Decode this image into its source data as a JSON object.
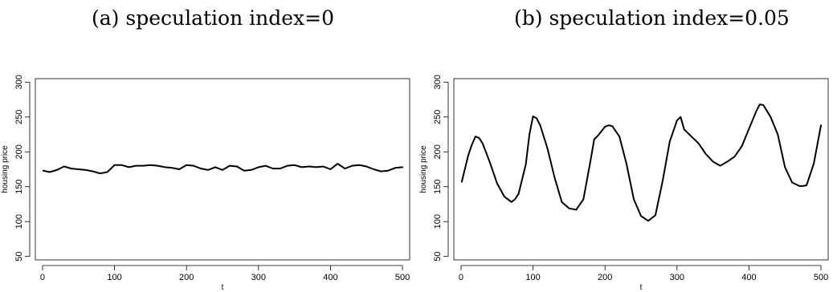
{
  "panels": {
    "a": {
      "title": "(a) speculation index=0"
    },
    "b": {
      "title": "(b) speculation index=0.05"
    }
  },
  "chart_data": [
    {
      "type": "line",
      "title": "(a) speculation index=0",
      "xlabel": "t",
      "ylabel": "housing price",
      "xlim": [
        -10,
        510
      ],
      "ylim": [
        45,
        305
      ],
      "xticks": [
        0,
        100,
        200,
        300,
        400,
        500
      ],
      "yticks": [
        50,
        100,
        150,
        200,
        250,
        300
      ],
      "grid": false,
      "series": [
        {
          "x": [
            1,
            10,
            20,
            30,
            40,
            50,
            60,
            70,
            80,
            90,
            100,
            110,
            120,
            130,
            140,
            150,
            160,
            170,
            180,
            190,
            200,
            210,
            220,
            230,
            240,
            250,
            260,
            270,
            280,
            290,
            300,
            310,
            320,
            330,
            340,
            350,
            360,
            370,
            380,
            390,
            400,
            410,
            420,
            430,
            440,
            450,
            460,
            470,
            480,
            490,
            500
          ],
          "values": [
            173,
            171,
            174,
            179,
            176,
            175,
            174,
            172,
            169,
            171,
            181,
            181,
            178,
            180,
            180,
            181,
            180,
            178,
            177,
            175,
            181,
            180,
            176,
            174,
            178,
            174,
            180,
            179,
            173,
            174,
            178,
            180,
            176,
            176,
            180,
            181,
            178,
            179,
            178,
            179,
            175,
            183,
            176,
            180,
            181,
            179,
            175,
            172,
            173,
            177,
            178
          ]
        }
      ]
    },
    {
      "type": "line",
      "title": "(b) speculation index=0.05",
      "xlabel": "t",
      "ylabel": "housing price",
      "xlim": [
        -10,
        510
      ],
      "ylim": [
        45,
        305
      ],
      "xticks": [
        0,
        100,
        200,
        300,
        400,
        500
      ],
      "yticks": [
        50,
        100,
        150,
        200,
        250,
        300
      ],
      "grid": false,
      "series": [
        {
          "x": [
            1,
            10,
            15,
            20,
            25,
            30,
            40,
            50,
            60,
            70,
            75,
            80,
            90,
            95,
            100,
            105,
            110,
            120,
            130,
            140,
            150,
            160,
            170,
            180,
            185,
            190,
            200,
            205,
            210,
            220,
            230,
            240,
            250,
            260,
            270,
            280,
            290,
            300,
            305,
            310,
            320,
            330,
            340,
            350,
            360,
            370,
            380,
            390,
            400,
            410,
            415,
            420,
            430,
            440,
            450,
            460,
            470,
            475,
            480,
            490,
            500
          ],
          "values": [
            157,
            195,
            210,
            222,
            220,
            212,
            185,
            155,
            136,
            128,
            132,
            140,
            182,
            225,
            251,
            248,
            238,
            205,
            163,
            128,
            119,
            117,
            132,
            188,
            218,
            223,
            236,
            238,
            237,
            222,
            182,
            132,
            108,
            101,
            109,
            158,
            215,
            245,
            250,
            232,
            222,
            212,
            197,
            186,
            180,
            186,
            193,
            208,
            233,
            258,
            268,
            267,
            250,
            225,
            178,
            156,
            151,
            151,
            152,
            183,
            238
          ]
        }
      ]
    }
  ]
}
